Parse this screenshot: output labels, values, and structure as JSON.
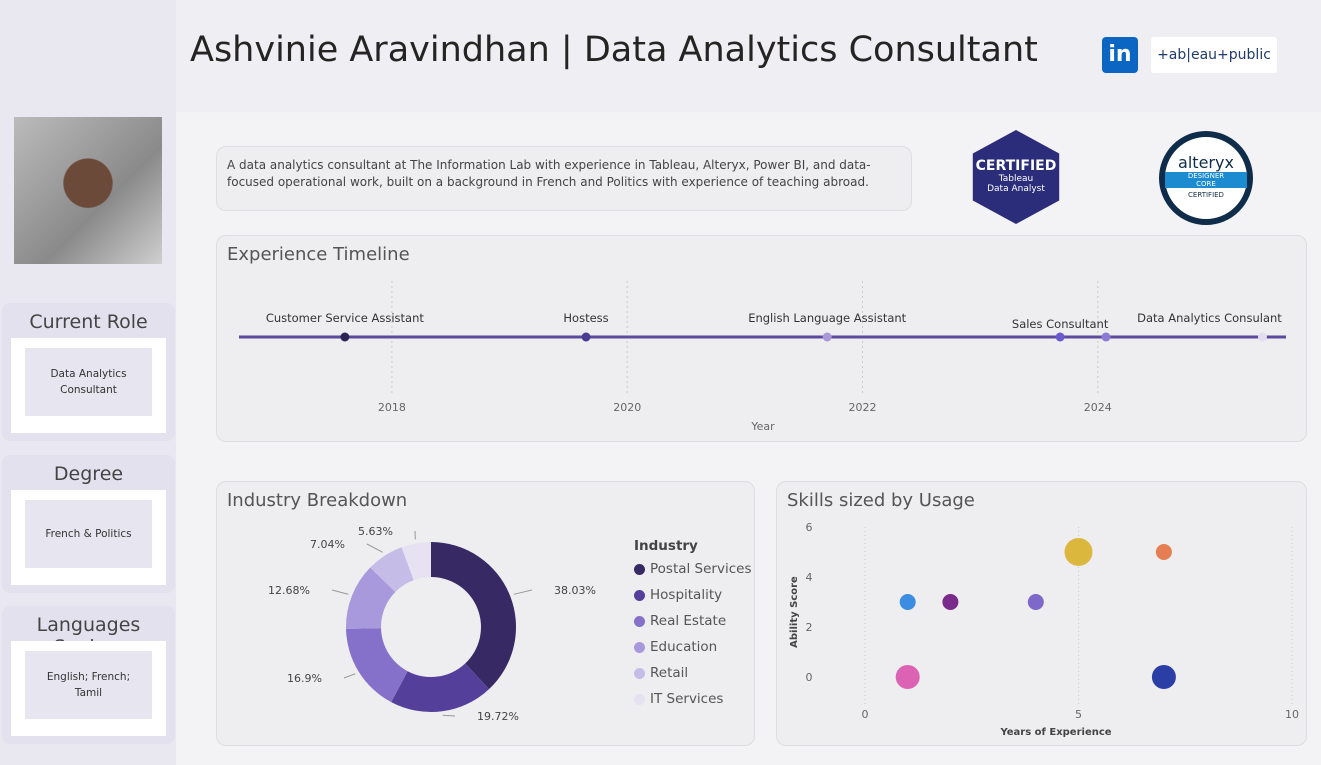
{
  "header": {
    "title": "Ashvinie Aravindhan | Data Analytics Consultant",
    "linkedin": "in",
    "tableau": "+ab|eau+public"
  },
  "bio": "A data analytics consultant at The Information Lab with experience in Tableau, Alteryx, Power BI, and data-focused operational work, built on a background in French and Politics with experience of  teaching abroad.",
  "badges": {
    "tableau": {
      "line1": "CERTIFIED",
      "line2": "Tableau",
      "line3": "Data Analyst"
    },
    "alteryx": {
      "line1": "alteryx",
      "line2": "DESIGNER",
      "line3": "CORE",
      "line4": "CERTIFIED"
    }
  },
  "sidebar": [
    {
      "label": "Current Role",
      "value": "Data Analytics Consultant"
    },
    {
      "label": "Degree",
      "value": "French & Politics"
    },
    {
      "label": "Languages Spoken",
      "value": "English; French; Tamil"
    }
  ],
  "timeline": {
    "title": "Experience Timeline",
    "xlabel": "Year",
    "ticks": [
      "2018",
      "2020",
      "2022",
      "2024"
    ],
    "tick_values": [
      2018,
      2020,
      2022,
      2024
    ],
    "xlim": [
      2016.7,
      2025.6
    ],
    "events": [
      {
        "label": "Customer Service Assistant",
        "year": 2017.6,
        "color": "#2b2457"
      },
      {
        "label": "Hostess",
        "year": 2019.65,
        "color": "#4a3d8f"
      },
      {
        "label": "English Language Assistant",
        "year": 2021.7,
        "color": "#a898d8"
      },
      {
        "label": "Sales Consultant",
        "year": 2023.68,
        "color": "#6a5acd"
      },
      {
        "label": "",
        "year": 2024.07,
        "color": "#8c7bd6"
      },
      {
        "label": "Data Analytics Consulant",
        "year": 2025.4,
        "color": "#e2ddf0"
      }
    ]
  },
  "chart_data": [
    {
      "type": "pie",
      "title": "Industry Breakdown",
      "legend_title": "Industry",
      "categories": [
        "Postal Services",
        "Hospitality",
        "Real Estate",
        "Education",
        "Retail",
        "IT Services"
      ],
      "values": [
        38.03,
        19.72,
        16.9,
        12.68,
        7.04,
        5.63
      ],
      "labels": [
        "38.03%",
        "19.72%",
        "16.9%",
        "12.68%",
        "7.04%",
        "5.63%"
      ],
      "colors": [
        "#372a64",
        "#54409a",
        "#8571c9",
        "#a899dc",
        "#c6bce8",
        "#e6e2f1"
      ]
    },
    {
      "type": "scatter",
      "title": "Skills sized by Usage",
      "xlabel": "Years of Experience",
      "ylabel": "Ability Score",
      "xlim": [
        0,
        10
      ],
      "ylim": [
        -1.5,
        6
      ],
      "xticks": [
        "0",
        "5",
        "10"
      ],
      "yticks": [
        "0",
        "2",
        "4",
        "6"
      ],
      "points": [
        {
          "x": 1,
          "y": 3,
          "size": 3,
          "color": "#3a8de0"
        },
        {
          "x": 2,
          "y": 3,
          "size": 3,
          "color": "#7a2a8a"
        },
        {
          "x": 4,
          "y": 3,
          "size": 3,
          "color": "#7e68c9"
        },
        {
          "x": 5,
          "y": 5,
          "size": 6,
          "color": "#dcb73e"
        },
        {
          "x": 7,
          "y": 5,
          "size": 3,
          "color": "#e57e52"
        },
        {
          "x": 1,
          "y": 0,
          "size": 5,
          "color": "#dc62b4"
        },
        {
          "x": 7,
          "y": 0,
          "size": 5,
          "color": "#2b3ea6"
        }
      ]
    }
  ]
}
